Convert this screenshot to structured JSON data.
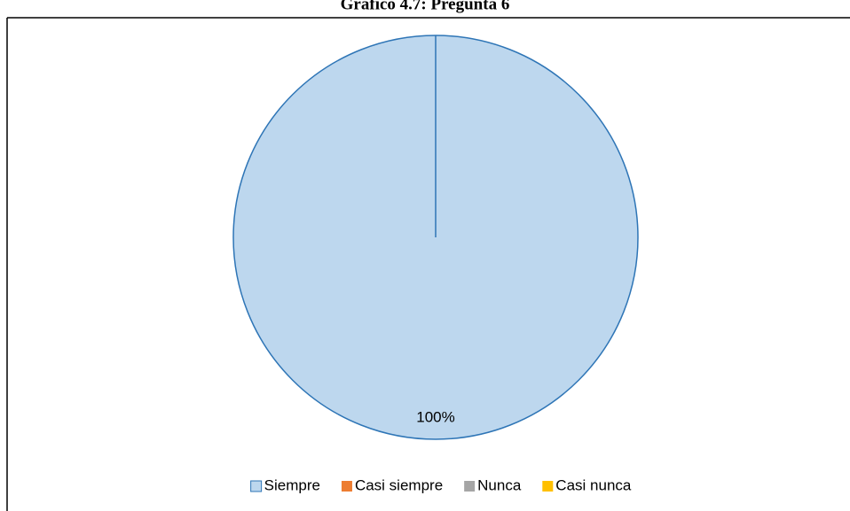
{
  "chart_data": {
    "type": "pie",
    "title": "Gráfico 4.7: Pregunta 6",
    "categories": [
      "Siempre",
      "Casi siempre",
      "Nunca",
      "Casi nunca"
    ],
    "values": [
      100,
      0,
      0,
      0
    ],
    "value_labels": [
      "100%",
      null,
      null,
      null
    ],
    "colors": [
      "#bdd7ee",
      "#ed7d31",
      "#a5a5a5",
      "#ffc000"
    ],
    "legend": "bottom"
  }
}
